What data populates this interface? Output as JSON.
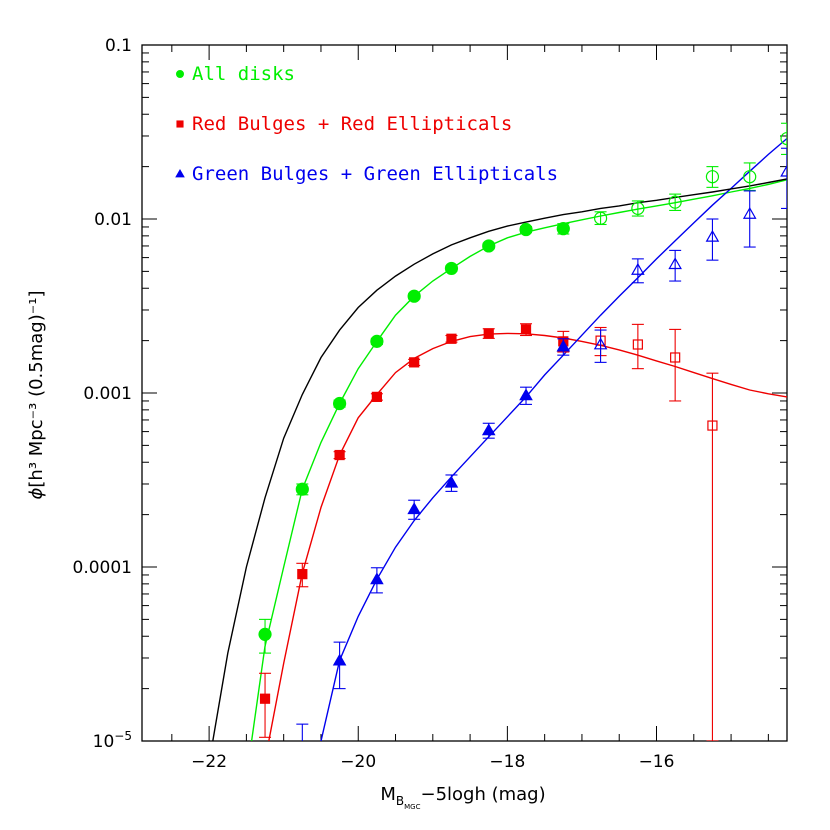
{
  "chart_data": {
    "type": "scatter",
    "xlabel": {
      "main": "M",
      "sub": "B",
      "subsub": "MGC",
      "rest": "−5logh (mag)"
    },
    "ylabel": {
      "phi": "ϕ",
      "text": "[h³ Mpc⁻³ (0.5mag)⁻¹]"
    },
    "xlim": [
      -22.9,
      -14.25
    ],
    "ylim": [
      1e-05,
      0.1
    ],
    "yscale": "log",
    "x_ticks": [
      {
        "value": -22,
        "label": "−22"
      },
      {
        "value": -20,
        "label": "−20"
      },
      {
        "value": -18,
        "label": "−18"
      },
      {
        "value": -16,
        "label": "−16"
      }
    ],
    "y_ticks": [
      {
        "value": 0.1,
        "label": "0.1"
      },
      {
        "value": 0.01,
        "label": "0.01"
      },
      {
        "value": 0.001,
        "label": "0.001"
      },
      {
        "value": 0.0001,
        "label": "0.0001"
      },
      {
        "value": 1e-05,
        "label": "10",
        "exp": "−5"
      }
    ],
    "legend_position": "top-left",
    "series": [
      {
        "name": "All disks",
        "color": "#00ee00",
        "marker": "circle",
        "filled_points": [
          {
            "x": -21.25,
            "y": 4.1e-05,
            "ylo": 3.2e-05,
            "yhi": 5e-05
          },
          {
            "x": -20.75,
            "y": 0.00028,
            "ylo": 0.00026,
            "yhi": 0.0003
          },
          {
            "x": -20.25,
            "y": 0.00087,
            "ylo": 0.00083,
            "yhi": 0.00091
          },
          {
            "x": -19.75,
            "y": 0.00198,
            "ylo": 0.0019,
            "yhi": 0.00206
          },
          {
            "x": -19.25,
            "y": 0.0036,
            "ylo": 0.00348,
            "yhi": 0.00372
          },
          {
            "x": -18.75,
            "y": 0.0052,
            "ylo": 0.00502,
            "yhi": 0.00538
          },
          {
            "x": -18.25,
            "y": 0.007,
            "ylo": 0.00675,
            "yhi": 0.00725
          },
          {
            "x": -17.75,
            "y": 0.0087,
            "ylo": 0.00835,
            "yhi": 0.00905
          },
          {
            "x": -17.25,
            "y": 0.0088,
            "ylo": 0.0082,
            "yhi": 0.0094
          }
        ],
        "open_points": [
          {
            "x": -16.75,
            "y": 0.0101,
            "ylo": 0.0093,
            "yhi": 0.011
          },
          {
            "x": -16.25,
            "y": 0.0115,
            "ylo": 0.0104,
            "yhi": 0.0127
          },
          {
            "x": -15.75,
            "y": 0.0125,
            "ylo": 0.0112,
            "yhi": 0.0139
          },
          {
            "x": -15.25,
            "y": 0.0175,
            "ylo": 0.0152,
            "yhi": 0.02
          },
          {
            "x": -14.75,
            "y": 0.0175,
            "ylo": 0.0146,
            "yhi": 0.021
          },
          {
            "x": -14.25,
            "y": 0.029,
            "ylo": 0.0235,
            "yhi": 0.0355
          }
        ],
        "fit_curve": {
          "x": [
            -21.43,
            -21.25,
            -21.0,
            -20.75,
            -20.5,
            -20.25,
            -20.0,
            -19.75,
            -19.5,
            -19.25,
            -19.0,
            -18.75,
            -18.5,
            -18.25,
            -18.0,
            -17.75,
            -17.5,
            -17.25,
            -17.0,
            -16.75,
            -16.5,
            -16.25,
            -16.0,
            -15.75,
            -15.5,
            -15.25,
            -15.0,
            -14.75,
            -14.5,
            -14.25
          ],
          "y": [
            1e-05,
            3.5e-05,
            0.0001,
            0.00028,
            0.00052,
            0.00087,
            0.00138,
            0.00198,
            0.0028,
            0.0036,
            0.0044,
            0.0052,
            0.0061,
            0.007,
            0.0078,
            0.0084,
            0.0089,
            0.0094,
            0.0099,
            0.0104,
            0.0109,
            0.0114,
            0.0119,
            0.0124,
            0.013,
            0.0136,
            0.0143,
            0.015,
            0.0158,
            0.0168
          ]
        }
      },
      {
        "name": "Red Bulges + Red Ellipticals",
        "color": "#ee0000",
        "marker": "square",
        "filled_points": [
          {
            "x": -21.25,
            "y": 1.75e-05,
            "ylo": 1.05e-05,
            "yhi": 2.45e-05
          },
          {
            "x": -20.75,
            "y": 9.1e-05,
            "ylo": 7.7e-05,
            "yhi": 0.000105
          },
          {
            "x": -20.25,
            "y": 0.00044,
            "ylo": 0.00042,
            "yhi": 0.00046
          },
          {
            "x": -19.75,
            "y": 0.00095,
            "ylo": 0.00091,
            "yhi": 0.00099
          },
          {
            "x": -19.25,
            "y": 0.0015,
            "ylo": 0.00144,
            "yhi": 0.00156
          },
          {
            "x": -18.75,
            "y": 0.00205,
            "ylo": 0.00196,
            "yhi": 0.00214
          },
          {
            "x": -18.25,
            "y": 0.0022,
            "ylo": 0.00206,
            "yhi": 0.00234
          },
          {
            "x": -17.75,
            "y": 0.00232,
            "ylo": 0.00214,
            "yhi": 0.0025
          },
          {
            "x": -17.25,
            "y": 0.00198,
            "ylo": 0.00172,
            "yhi": 0.00226
          }
        ],
        "open_points": [
          {
            "x": -16.75,
            "y": 0.002,
            "ylo": 0.00164,
            "yhi": 0.00238
          },
          {
            "x": -16.25,
            "y": 0.0019,
            "ylo": 0.00138,
            "yhi": 0.00248
          },
          {
            "x": -15.75,
            "y": 0.0016,
            "ylo": 0.0009,
            "yhi": 0.00232
          },
          {
            "x": -15.25,
            "y": 0.00065,
            "ylo": 1e-05,
            "yhi": 0.0013
          }
        ],
        "fit_curve": {
          "x": [
            -21.2,
            -21.0,
            -20.75,
            -20.5,
            -20.25,
            -20.0,
            -19.75,
            -19.5,
            -19.25,
            -19.0,
            -18.75,
            -18.5,
            -18.25,
            -18.0,
            -17.75,
            -17.5,
            -17.25,
            -17.0,
            -16.75,
            -16.5,
            -16.25,
            -16.0,
            -15.75,
            -15.5,
            -15.25,
            -15.0,
            -14.75,
            -14.5,
            -14.25
          ],
          "y": [
            1e-05,
            2.8e-05,
            9.2e-05,
            0.00022,
            0.00044,
            0.00072,
            0.00098,
            0.00131,
            0.00158,
            0.0018,
            0.00198,
            0.00211,
            0.00218,
            0.0022,
            0.00219,
            0.00214,
            0.00207,
            0.00198,
            0.00188,
            0.00177,
            0.00165,
            0.00153,
            0.00142,
            0.00131,
            0.00121,
            0.00112,
            0.00104,
            0.00099,
            0.00095
          ]
        }
      },
      {
        "name": "Green Bulges + Green Ellipticals",
        "color": "#0000ee",
        "marker": "triangle",
        "filled_points": [
          {
            "x": -20.75,
            "y": 8.5e-06,
            "ylo": 5e-06,
            "yhi": 1.25e-05
          },
          {
            "x": -20.25,
            "y": 2.9e-05,
            "ylo": 2e-05,
            "yhi": 3.7e-05
          },
          {
            "x": -19.75,
            "y": 8.5e-05,
            "ylo": 7.1e-05,
            "yhi": 9.9e-05
          },
          {
            "x": -19.25,
            "y": 0.000215,
            "ylo": 0.000188,
            "yhi": 0.000242
          },
          {
            "x": -18.75,
            "y": 0.000305,
            "ylo": 0.000272,
            "yhi": 0.000338
          },
          {
            "x": -18.25,
            "y": 0.00061,
            "ylo": 0.00055,
            "yhi": 0.00067
          },
          {
            "x": -17.75,
            "y": 0.00097,
            "ylo": 0.00086,
            "yhi": 0.00108
          },
          {
            "x": -17.25,
            "y": 0.00185,
            "ylo": 0.00165,
            "yhi": 0.00205
          }
        ],
        "open_points": [
          {
            "x": -16.75,
            "y": 0.0019,
            "ylo": 0.0015,
            "yhi": 0.0023
          },
          {
            "x": -16.25,
            "y": 0.0051,
            "ylo": 0.0043,
            "yhi": 0.0059
          },
          {
            "x": -15.75,
            "y": 0.0055,
            "ylo": 0.0044,
            "yhi": 0.0066
          },
          {
            "x": -15.25,
            "y": 0.0079,
            "ylo": 0.0058,
            "yhi": 0.01
          },
          {
            "x": -14.75,
            "y": 0.0107,
            "ylo": 0.0069,
            "yhi": 0.0145
          },
          {
            "x": -14.25,
            "y": 0.0187,
            "ylo": 0.0115,
            "yhi": 0.0255
          }
        ],
        "fit_curve": {
          "x": [
            -20.5,
            -20.25,
            -20.0,
            -19.75,
            -19.5,
            -19.25,
            -19.0,
            -18.75,
            -18.5,
            -18.25,
            -18.0,
            -17.75,
            -17.5,
            -17.25,
            -17.0,
            -16.75,
            -16.5,
            -16.25,
            -16.0,
            -15.75,
            -15.5,
            -15.25,
            -15.0,
            -14.75,
            -14.5,
            -14.25
          ],
          "y": [
            1e-05,
            2.9e-05,
            5.2e-05,
            8.5e-05,
            0.00013,
            0.000185,
            0.00025,
            0.00033,
            0.00043,
            0.00056,
            0.00073,
            0.00095,
            0.00127,
            0.00165,
            0.00215,
            0.0028,
            0.0036,
            0.0046,
            0.0059,
            0.0075,
            0.0095,
            0.012,
            0.015,
            0.0188,
            0.0235,
            0.029
          ]
        }
      },
      {
        "color": "#000000",
        "fit_curve": {
          "x": [
            -21.95,
            -21.75,
            -21.5,
            -21.25,
            -21.0,
            -20.75,
            -20.5,
            -20.25,
            -20.0,
            -19.75,
            -19.5,
            -19.25,
            -19.0,
            -18.75,
            -18.5,
            -18.25,
            -18.0,
            -17.75,
            -17.5,
            -17.25,
            -17.0,
            -16.75,
            -16.5,
            -16.25,
            -16.0,
            -15.75,
            -15.5,
            -15.25,
            -15.0,
            -14.75,
            -14.5,
            -14.25
          ],
          "y": [
            1e-05,
            3.2e-05,
            0.0001,
            0.00025,
            0.00055,
            0.00098,
            0.0016,
            0.0023,
            0.0031,
            0.0039,
            0.0047,
            0.0055,
            0.0063,
            0.0071,
            0.0078,
            0.0085,
            0.0091,
            0.0096,
            0.0101,
            0.0106,
            0.011,
            0.0115,
            0.0119,
            0.0124,
            0.0128,
            0.0133,
            0.0138,
            0.0143,
            0.0149,
            0.0155,
            0.0162,
            0.017
          ]
        }
      }
    ]
  }
}
